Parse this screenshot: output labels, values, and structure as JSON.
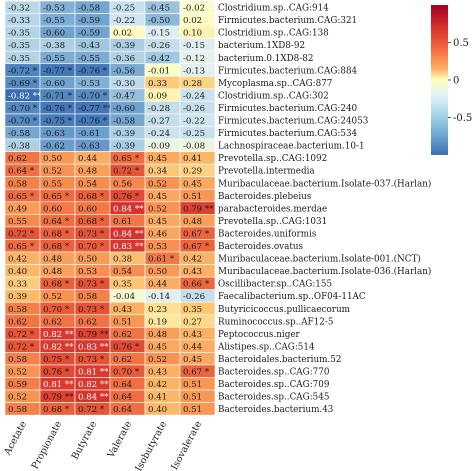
{
  "chart_data": {
    "type": "heatmap",
    "columns": [
      "Acetate",
      "Propionate",
      "Butyrate",
      "Valerate",
      "Isobutyrate",
      "Isovalerate"
    ],
    "rows": [
      {
        "label": "Clostridium.sp..CAG:914",
        "values": [
          "-0.32",
          "-0.53",
          "-0.58",
          "-0.25",
          "-0.45",
          "-0.02"
        ]
      },
      {
        "label": "Firmicutes.bacterium.CAG:321",
        "values": [
          "-0.33",
          "-0.55",
          "-0.59",
          "-0.22",
          "-0.50",
          "0.02"
        ]
      },
      {
        "label": "Clostridium.sp..CAG:138",
        "values": [
          "-0.35",
          "-0.60",
          "-0.59",
          "0.02",
          "-0.15",
          "0.10"
        ]
      },
      {
        "label": "bacterium.1XD8-92",
        "values": [
          "-0.35",
          "-0.38",
          "-0.43",
          "-0.39",
          "-0.26",
          "-0.15"
        ]
      },
      {
        "label": "bacterium.0.1XD8-82",
        "values": [
          "-0.35",
          "-0.55",
          "-0.55",
          "-0.36",
          "-0.42",
          "-0.12"
        ]
      },
      {
        "label": "Firmicutes.bacterium.CAG:884",
        "values": [
          "-0.72 *",
          "-0.77 *",
          "-0.76 *",
          "-0.56",
          "-0.01",
          "-0.13"
        ]
      },
      {
        "label": "Mycoplasma.sp..CAG:877",
        "values": [
          "-0.69 *",
          "-0.60",
          "-0.53",
          "-0.30",
          "0.33",
          "0.28"
        ]
      },
      {
        "label": "Clostridium.sp..CAG:302",
        "values": [
          "-0.82 **",
          "-0.71 *",
          "-0.70 *",
          "-0.47",
          "0.09",
          "-0.24"
        ]
      },
      {
        "label": "Firmicutes.bacterium.CAG:240",
        "values": [
          "-0.70 *",
          "-0.76 *",
          "-0.77 **",
          "-0.60",
          "-0.28",
          "-0.26"
        ]
      },
      {
        "label": "Firmicutes.bacterium.CAG:24053",
        "values": [
          "-0.70 *",
          "-0.75 *",
          "-0.76 *",
          "-0.58",
          "-0.27",
          "-0.22"
        ]
      },
      {
        "label": "Firmicutes.bacterium.CAG:534",
        "values": [
          "-0.58",
          "-0.63",
          "-0.61",
          "-0.39",
          "-0.24",
          "-0.25"
        ]
      },
      {
        "label": "Lachnospiraceae.bacterium.10-1",
        "values": [
          "-0.38",
          "-0.62",
          "-0.63",
          "-0.39",
          "-0.09",
          "-0.08"
        ]
      },
      {
        "label": "Prevotella.sp..CAG:1092",
        "values": [
          "0.62",
          "0.50",
          "0.44",
          "0.65 *",
          "0.45",
          "0.41"
        ]
      },
      {
        "label": "Prevotella.intermedia",
        "values": [
          "0.64 *",
          "0.52",
          "0.48",
          "0.72 *",
          "0.34",
          "0.29"
        ]
      },
      {
        "label": "Muribaculaceae.bacterium.Isolate-037.(Harlan)",
        "values": [
          "0.58",
          "0.55",
          "0.54",
          "0.56",
          "0.52",
          "0.45"
        ]
      },
      {
        "label": "Bacteroides.plebeius",
        "values": [
          "0.65 *",
          "0.65 *",
          "0.68 *",
          "0.76 *",
          "0.45",
          "0.51"
        ]
      },
      {
        "label": "parabacteroides.merdae",
        "values": [
          "0.49",
          "0.60",
          "0.60",
          "0.84 **",
          "0.52",
          "0.79 **"
        ]
      },
      {
        "label": "Prevotella.sp..CAG:1031",
        "values": [
          "0.55",
          "0.64 *",
          "0.68 *",
          "0.61",
          "0.45",
          "0.48"
        ]
      },
      {
        "label": "Bacteroides.uniformis",
        "values": [
          "0.72 *",
          "0.68 *",
          "0.73 *",
          "0.84 **",
          "0.46",
          "0.67 *"
        ]
      },
      {
        "label": "Bacteroides.ovatus",
        "values": [
          "0.65 *",
          "0.68 *",
          "0.70 *",
          "0.83 **",
          "0.53",
          "0.67 *"
        ]
      },
      {
        "label": "Muribaculaceae.bacterium.Isolate-001.(NCT)",
        "values": [
          "0.42",
          "0.48",
          "0.50",
          "0.38",
          "0.61 *",
          "0.42"
        ]
      },
      {
        "label": "Muribaculaceae.bacterium.Isolate-036.(Harlan)",
        "values": [
          "0.40",
          "0.48",
          "0.53",
          "0.54",
          "0.50",
          "0.43"
        ]
      },
      {
        "label": "Oscillibacter.sp..CAG:155",
        "values": [
          "0.33",
          "0.68 *",
          "0.73 *",
          "0.35",
          "0.44",
          "0.66 *"
        ]
      },
      {
        "label": "Faecalibacterium.sp..OF04-11AC",
        "values": [
          "0.39",
          "0.52",
          "0.58",
          "-0.04",
          "-0.14",
          "-0.26"
        ]
      },
      {
        "label": "Butyricicoccus.pullicaecorum",
        "values": [
          "0.58",
          "0.70 *",
          "0.73 *",
          "0.43",
          "0.23",
          "0.35"
        ]
      },
      {
        "label": "Ruminococcus.sp..AF12-5",
        "values": [
          "0.62",
          "0.62",
          "0.62",
          "0.51",
          "0.19",
          "0.27"
        ]
      },
      {
        "label": "Peptococcus.niger",
        "values": [
          "0.72 *",
          "0.82 **",
          "0.79 **",
          "0.62",
          "0.48",
          "0.43"
        ]
      },
      {
        "label": "Alistipes.sp..CAG:514",
        "values": [
          "0.72 *",
          "0.82 **",
          "0.83 **",
          "0.76 *",
          "0.45",
          "0.44"
        ]
      },
      {
        "label": "Bacteroidales.bacterium.52",
        "values": [
          "0.58",
          "0.75 *",
          "0.73 *",
          "0.62",
          "0.52",
          "0.45"
        ]
      },
      {
        "label": "Bacteroides.sp..CAG:770",
        "values": [
          "0.52",
          "0.76 *",
          "0.81 **",
          "0.70 *",
          "0.43",
          "0.67 *"
        ]
      },
      {
        "label": "Bacteroides.sp..CAG:709",
        "values": [
          "0.59",
          "0.81 **",
          "0.82 **",
          "0.64",
          "0.42",
          "0.51"
        ]
      },
      {
        "label": "Bacteroides.sp..CAG:545",
        "values": [
          "0.52",
          "0.79 **",
          "0.84 **",
          "0.64",
          "0.41",
          "0.51"
        ]
      },
      {
        "label": "Bacteroides.bacterium.43",
        "values": [
          "0.58",
          "0.68 *",
          "0.72 *",
          "0.64",
          "0.40",
          "0.51"
        ]
      }
    ],
    "colorbar": {
      "range": [
        -1,
        1
      ],
      "ticks": [
        "0.5",
        "0",
        "-0.5"
      ],
      "colors": {
        "low": "#3a6fb4",
        "mid": "#ffffbf",
        "high": "#d7302b"
      }
    },
    "legend_position": "right"
  }
}
